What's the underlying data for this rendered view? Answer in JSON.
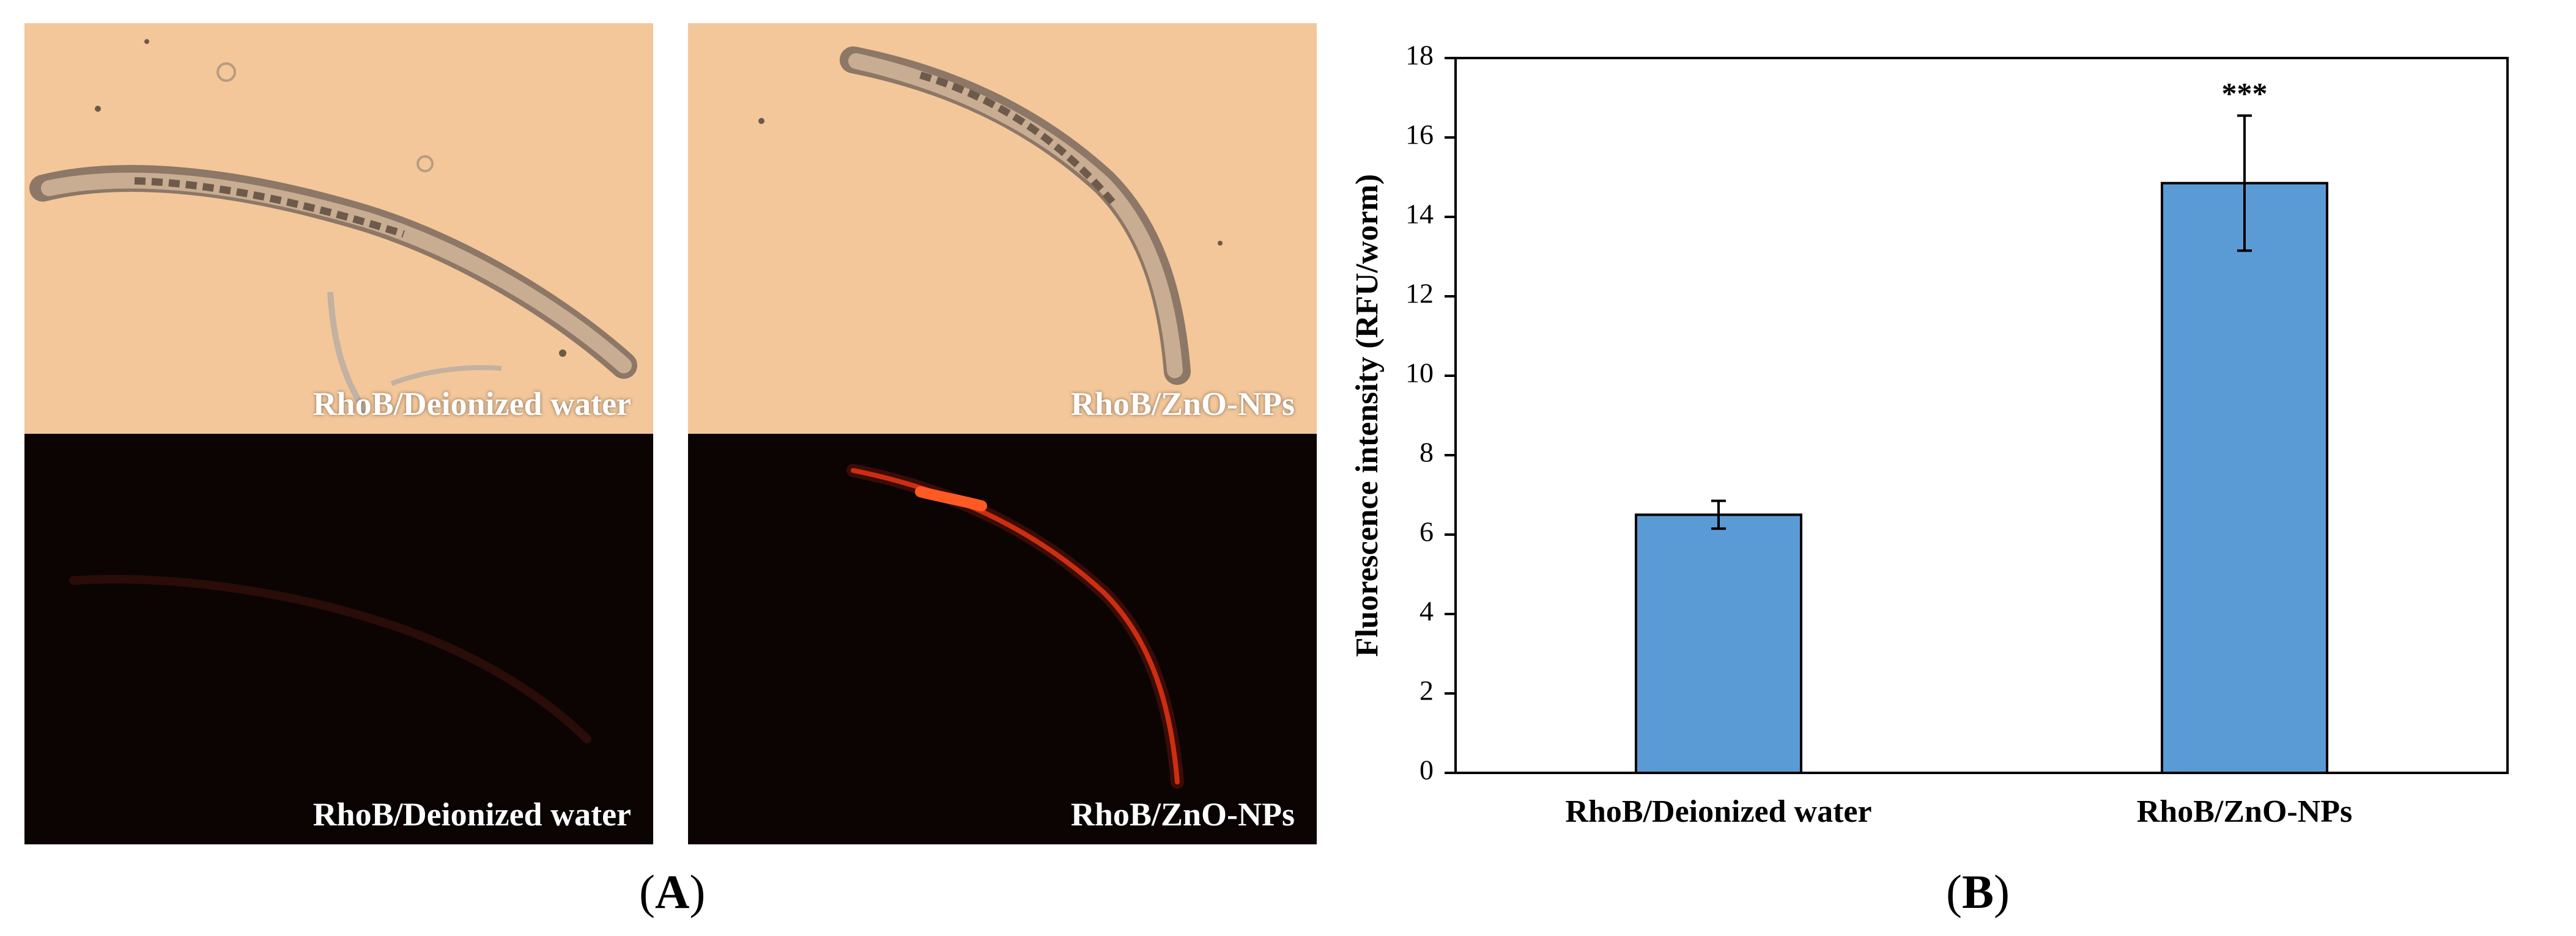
{
  "panel_a": {
    "letter": "A",
    "images": [
      {
        "label": "RhoB/Deionized water",
        "kind": "brightfield"
      },
      {
        "label": "RhoB/ZnO-NPs",
        "kind": "brightfield"
      },
      {
        "label": "RhoB/Deionized water",
        "kind": "fluorescence"
      },
      {
        "label": "RhoB/ZnO-NPs",
        "kind": "fluorescence"
      }
    ],
    "colors": {
      "brightfield": "#f3c79a",
      "fluorescence": "#0b0403",
      "signal": "#ff3a14"
    }
  },
  "panel_b": {
    "letter": "B"
  },
  "chart_data": {
    "type": "bar",
    "categories": [
      "RhoB/Deionized water",
      "RhoB/ZnO-NPs"
    ],
    "values": [
      6.5,
      14.85
    ],
    "errors": [
      0.35,
      1.7
    ],
    "annotations": [
      "",
      "***"
    ],
    "title": "",
    "xlabel": "",
    "ylabel": "Fluorescence intensity (RFU/worm)",
    "ylim": [
      0,
      18
    ],
    "yticks": [
      0,
      2,
      4,
      6,
      8,
      10,
      12,
      14,
      16,
      18
    ],
    "grid": false,
    "legend": "none",
    "bar_color": "#5b9bd5"
  }
}
